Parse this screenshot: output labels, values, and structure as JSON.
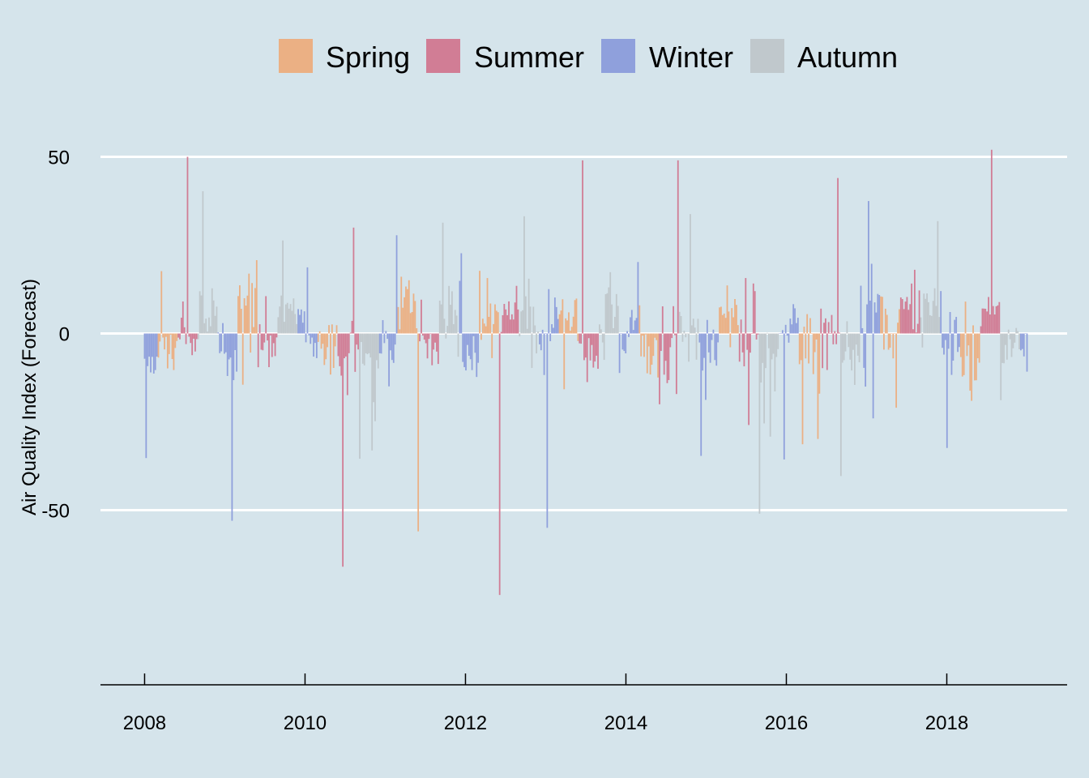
{
  "chart_data": {
    "type": "bar",
    "title": "",
    "xlabel": "",
    "ylabel": "Air Quality Index (Forecast)",
    "xlim": [
      2007.45,
      2019.5
    ],
    "ylim": [
      -99,
      56
    ],
    "x_ticks": [
      "2008",
      "2010",
      "2012",
      "2014",
      "2016",
      "2018"
    ],
    "y_ticks": [
      "50",
      "0",
      "-50"
    ],
    "grid": "horizontal",
    "legend_position": "top",
    "series": [
      {
        "name": "Spring",
        "color": "#ebb084",
        "month_start": 3
      },
      {
        "name": "Summer",
        "color": "#d17d95",
        "month_start": 6
      },
      {
        "name": "Winter",
        "color": "#8fa0dc",
        "month_start": 12
      },
      {
        "name": "Autumn",
        "color": "#c0c8cc",
        "month_start": 9
      }
    ],
    "x_range": [
      "2008-01-01",
      "2019-01-07"
    ],
    "bar_interval_days": 7,
    "noted_extremes": [
      {
        "date": "2008-07-15",
        "value": 50
      },
      {
        "date": "2010-06-25",
        "value": -66
      },
      {
        "date": "2012-06-05",
        "value": -74
      },
      {
        "date": "2013-06-20",
        "value": 49
      },
      {
        "date": "2014-08-25",
        "value": 49
      },
      {
        "date": "2016-08-25",
        "value": 44
      },
      {
        "date": "2018-07-25",
        "value": 52
      },
      {
        "date": "2015-08-30",
        "value": -51
      },
      {
        "date": "2013-01-05",
        "value": -55
      },
      {
        "date": "2011-06-01",
        "value": -56
      },
      {
        "date": "2009-02-05",
        "value": -53
      }
    ]
  }
}
